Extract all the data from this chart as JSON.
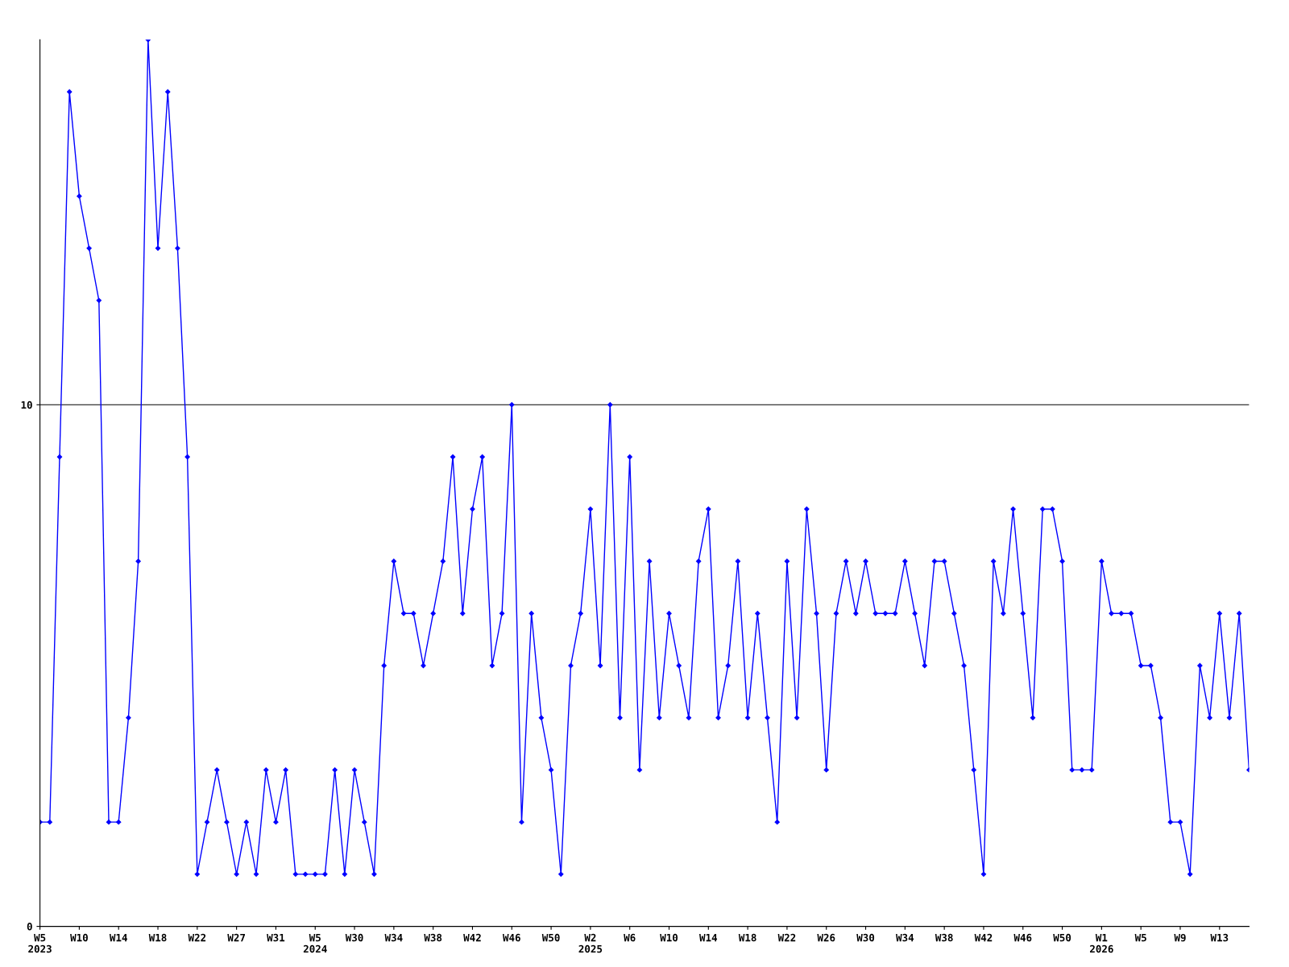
{
  "chart_data": {
    "type": "line",
    "categories": [
      "W5\n2023",
      null,
      null,
      null,
      "W10",
      null,
      null,
      null,
      "W14",
      null,
      null,
      null,
      "W18",
      null,
      null,
      null,
      "W22",
      null,
      null,
      null,
      "W27",
      null,
      null,
      null,
      "W31",
      null,
      null,
      null,
      "W5\n2024",
      null,
      null,
      null,
      "W30",
      null,
      null,
      null,
      "W34",
      null,
      null,
      null,
      "W38",
      null,
      null,
      null,
      "W42",
      null,
      null,
      null,
      "W46",
      null,
      null,
      null,
      "W50",
      null,
      null,
      null,
      "W2\n2025",
      null,
      null,
      null,
      "W6",
      null,
      null,
      null,
      "W10",
      null,
      null,
      null,
      "W14",
      null,
      null,
      null,
      "W18",
      null,
      null,
      null,
      "W22",
      null,
      null,
      null,
      "W26",
      null,
      null,
      null,
      "W30",
      null,
      null,
      null,
      "W34",
      null,
      null,
      null,
      "W38",
      null,
      null,
      null,
      "W42",
      null,
      null,
      null,
      "W46",
      null,
      null,
      null,
      "W50",
      null,
      null,
      null,
      "W1\n2026",
      null,
      null,
      null,
      "W5",
      null,
      null,
      null,
      "W9",
      null,
      null,
      null,
      "W13",
      null,
      null,
      null
    ],
    "series": [
      {
        "color": "#0000ff",
        "values": [
          2,
          2,
          9,
          16,
          14,
          13,
          12,
          2,
          2,
          4,
          7,
          17,
          13,
          16,
          13,
          9,
          1,
          2,
          3,
          2,
          1,
          2,
          1,
          3,
          2,
          3,
          1,
          1,
          1,
          1,
          3,
          1,
          3,
          2,
          1,
          5,
          7,
          6,
          6,
          5,
          6,
          7,
          9,
          6,
          8,
          9,
          5,
          6,
          10,
          2,
          6,
          4,
          3,
          1,
          5,
          6,
          8,
          5,
          10,
          4,
          9,
          3,
          7,
          4,
          6,
          5,
          4,
          7,
          8,
          4,
          5,
          7,
          4,
          6,
          4,
          2,
          7,
          4,
          8,
          6,
          3,
          6,
          7,
          6,
          7,
          6,
          6,
          6,
          7,
          6,
          5,
          7,
          7,
          6,
          5,
          3,
          1,
          7,
          6,
          8,
          6,
          4,
          8,
          8,
          7,
          3,
          3,
          3,
          7,
          6,
          6,
          6,
          5,
          5,
          4,
          2,
          2,
          1,
          5,
          4,
          6,
          4,
          6,
          3
        ]
      }
    ],
    "ylim": [
      0,
      17
    ],
    "yticks": [
      0,
      10
    ],
    "grid": "y",
    "marker": "diamond",
    "line_style": "solid",
    "legend": false
  }
}
